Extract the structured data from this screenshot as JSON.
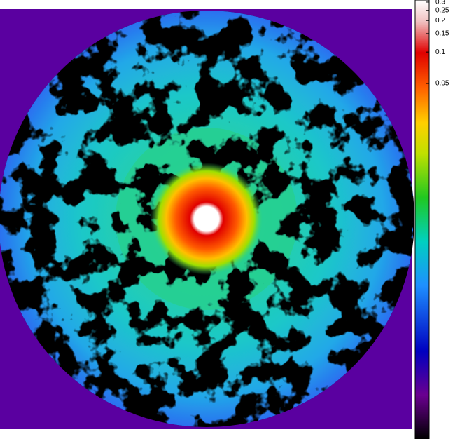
{
  "chart_data": {
    "type": "image",
    "colorbar": {
      "scale": "log",
      "clim": [
        2e-05,
        0.314
      ],
      "ticks": [
        0.3,
        0.25,
        0.2,
        0.15,
        0.1,
        0.05
      ]
    }
  }
}
